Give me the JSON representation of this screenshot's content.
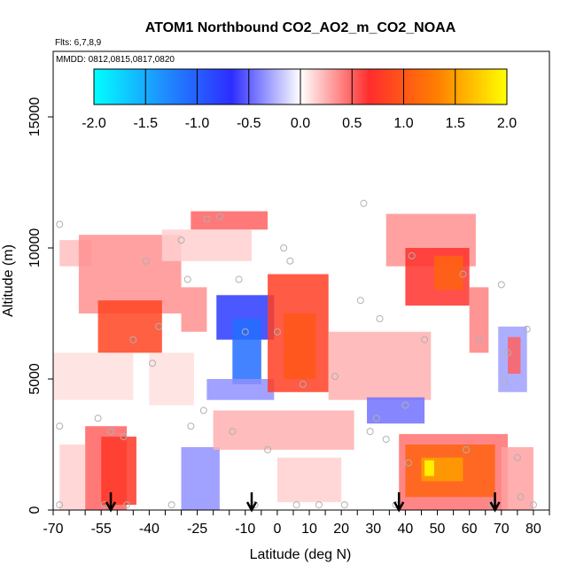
{
  "chart_data": {
    "type": "heatmap",
    "title": "ATOM1 Northbound CO2_AO2_m_CO2_NOAA",
    "note_flights": "Flts: 6,7,8,9",
    "note_dates": "MMDD: 0812,0815,0817,0820",
    "xlabel": "Latitude (deg N)",
    "ylabel": "Altitude (m)",
    "xlim": [
      -70,
      85
    ],
    "ylim": [
      0,
      17500
    ],
    "x_ticks": [
      -70,
      -55,
      -40,
      -25,
      -10,
      0,
      10,
      20,
      30,
      40,
      50,
      60,
      70,
      80
    ],
    "y_ticks": [
      0,
      5000,
      10000,
      15000
    ],
    "colorbar": {
      "range": [
        -2.0,
        2.0
      ],
      "ticks": [
        "-2.0",
        "-1.5",
        "-1.0",
        "-0.5",
        "0.0",
        "0.5",
        "1.0",
        "1.5",
        "2.0"
      ],
      "colors": [
        "#00ffff",
        "#1e90ff",
        "#2d2dff",
        "#ffffff",
        "#ff2d2d",
        "#ff8000",
        "#ffff00"
      ]
    },
    "grid": false,
    "legend_placement": "top",
    "cells": [
      {
        "x0": -68,
        "x1": -58,
        "y0": 9300,
        "y1": 10300,
        "value": 0.2
      },
      {
        "x0": -62,
        "x1": -30,
        "y0": 7500,
        "y1": 10500,
        "value": 0.35
      },
      {
        "x0": -56,
        "x1": -36,
        "y0": 6000,
        "y1": 8000,
        "value": 0.85
      },
      {
        "x0": -30,
        "x1": -22,
        "y0": 6800,
        "y1": 8500,
        "value": 0.35
      },
      {
        "x0": -27,
        "x1": -3,
        "y0": 10700,
        "y1": 11400,
        "value": 0.5
      },
      {
        "x0": -36,
        "x1": -8,
        "y0": 9500,
        "y1": 10700,
        "value": 0.15
      },
      {
        "x0": -70,
        "x1": -45,
        "y0": 4200,
        "y1": 6000,
        "value": 0.1
      },
      {
        "x0": -40,
        "x1": -26,
        "y0": 4000,
        "y1": 6000,
        "value": 0.1
      },
      {
        "x0": -19,
        "x1": -1,
        "y0": 6500,
        "y1": 8200,
        "value": -0.75
      },
      {
        "x0": -14,
        "x1": -5,
        "y0": 4800,
        "y1": 7300,
        "value": -1.1
      },
      {
        "x0": -22,
        "x1": -1,
        "y0": 4200,
        "y1": 5000,
        "value": -0.35
      },
      {
        "x0": -3,
        "x1": 16,
        "y0": 4500,
        "y1": 9000,
        "value": 0.8
      },
      {
        "x0": 2,
        "x1": 12,
        "y0": 5000,
        "y1": 7500,
        "value": 1.0
      },
      {
        "x0": 16,
        "x1": 48,
        "y0": 4200,
        "y1": 6800,
        "value": 0.25
      },
      {
        "x0": 34,
        "x1": 62,
        "y0": 9300,
        "y1": 11300,
        "value": 0.35
      },
      {
        "x0": 40,
        "x1": 60,
        "y0": 7800,
        "y1": 10000,
        "value": 0.7
      },
      {
        "x0": 49,
        "x1": 58,
        "y0": 8400,
        "y1": 9700,
        "value": 1.1
      },
      {
        "x0": 60,
        "x1": 66,
        "y0": 6000,
        "y1": 8500,
        "value": 0.4
      },
      {
        "x0": 69,
        "x1": 78,
        "y0": 4500,
        "y1": 7000,
        "value": -0.3
      },
      {
        "x0": 72,
        "x1": 76,
        "y0": 5200,
        "y1": 6600,
        "value": 0.5
      },
      {
        "x0": -60,
        "x1": -47,
        "y0": 0,
        "y1": 3200,
        "value": 0.5
      },
      {
        "x0": -55,
        "x1": -44,
        "y0": 200,
        "y1": 2800,
        "value": 0.75
      },
      {
        "x0": -30,
        "x1": -18,
        "y0": 0,
        "y1": 2400,
        "value": -0.35
      },
      {
        "x0": -20,
        "x1": 24,
        "y0": 2300,
        "y1": 3800,
        "value": 0.25
      },
      {
        "x0": 0,
        "x1": 20,
        "y0": 300,
        "y1": 2000,
        "value": 0.15
      },
      {
        "x0": 28,
        "x1": 46,
        "y0": 3300,
        "y1": 4300,
        "value": -0.45
      },
      {
        "x0": 38,
        "x1": 72,
        "y0": 0,
        "y1": 2900,
        "value": 0.45
      },
      {
        "x0": 40,
        "x1": 68,
        "y0": 500,
        "y1": 2500,
        "value": 1.1
      },
      {
        "x0": 45,
        "x1": 58,
        "y0": 1100,
        "y1": 2000,
        "value": 1.5
      },
      {
        "x0": 46,
        "x1": 49,
        "y0": 1300,
        "y1": 1900,
        "value": 2.0
      },
      {
        "x0": 70,
        "x1": 80,
        "y0": 0,
        "y1": 2400,
        "value": 0.3
      },
      {
        "x0": -68,
        "x1": -60,
        "y0": 0,
        "y1": 2500,
        "value": 0.15
      }
    ],
    "samples": [
      [
        -68,
        10900
      ],
      [
        -68,
        3200
      ],
      [
        -68,
        200
      ],
      [
        -56,
        3500
      ],
      [
        -54,
        200
      ],
      [
        -52,
        3000
      ],
      [
        -48,
        2800
      ],
      [
        -47,
        200
      ],
      [
        -45,
        6500
      ],
      [
        -41,
        9500
      ],
      [
        -39,
        5600
      ],
      [
        -37,
        7000
      ],
      [
        -33,
        200
      ],
      [
        -30,
        10300
      ],
      [
        -28,
        8800
      ],
      [
        -27,
        3200
      ],
      [
        -23,
        3800
      ],
      [
        -22,
        11100
      ],
      [
        -18,
        11200
      ],
      [
        -14,
        3000
      ],
      [
        -12,
        8800
      ],
      [
        -10,
        6800
      ],
      [
        -7,
        200
      ],
      [
        -3,
        2300
      ],
      [
        0,
        6800
      ],
      [
        2,
        10000
      ],
      [
        4,
        9500
      ],
      [
        6,
        200
      ],
      [
        8,
        4800
      ],
      [
        13,
        200
      ],
      [
        18,
        5100
      ],
      [
        21,
        200
      ],
      [
        26,
        8000
      ],
      [
        27,
        11700
      ],
      [
        29,
        3000
      ],
      [
        31,
        3500
      ],
      [
        32,
        7300
      ],
      [
        34,
        2700
      ],
      [
        37,
        200
      ],
      [
        40,
        4000
      ],
      [
        41,
        1800
      ],
      [
        42,
        9700
      ],
      [
        46,
        6500
      ],
      [
        58,
        9000
      ],
      [
        59,
        2300
      ],
      [
        63,
        6500
      ],
      [
        67,
        200
      ],
      [
        70,
        8600
      ],
      [
        71,
        4900
      ],
      [
        72,
        6000
      ],
      [
        75,
        2000
      ],
      [
        76,
        500
      ],
      [
        78,
        6900
      ],
      [
        80,
        200
      ]
    ],
    "arrows_x": [
      -52,
      -8,
      38,
      68
    ]
  }
}
